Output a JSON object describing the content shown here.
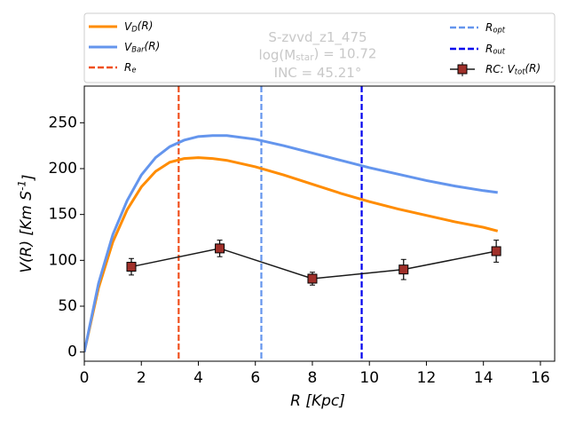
{
  "chart_data": {
    "type": "line",
    "annotations": [
      "S-zvvd_z1_475",
      "log(M_{star}) = 10.72",
      "INC = 45.21°"
    ],
    "xlabel": "R [Kpc]",
    "ylabel": "V(R) [Km S^{-1}]",
    "xlim": [
      0,
      16.5
    ],
    "ylim": [
      -10,
      290
    ],
    "xticks": [
      0,
      2,
      4,
      6,
      8,
      10,
      12,
      14,
      16
    ],
    "yticks": [
      0,
      50,
      100,
      150,
      200,
      250
    ],
    "series": [
      {
        "name": "V_{D}(R)",
        "color": "#ff8c00",
        "x": [
          0,
          0.5,
          1,
          1.5,
          2,
          2.5,
          3,
          3.5,
          4,
          4.5,
          5,
          6,
          7,
          8,
          9,
          10,
          11,
          12,
          13,
          14,
          14.5
        ],
        "values": [
          0,
          70,
          120,
          155,
          180,
          197,
          207,
          211,
          212,
          211,
          209,
          202,
          193,
          183,
          173,
          164,
          156,
          149,
          142,
          136,
          132
        ]
      },
      {
        "name": "V_{Bar}(R)",
        "color": "#6495ed",
        "x": [
          0,
          0.5,
          1,
          1.5,
          2,
          2.5,
          3,
          3.5,
          4,
          4.5,
          5,
          6,
          7,
          8,
          9,
          10,
          11,
          12,
          13,
          14,
          14.5
        ],
        "values": [
          0,
          75,
          128,
          165,
          193,
          212,
          224,
          231,
          235,
          236,
          236,
          232,
          225,
          217,
          209,
          201,
          194,
          187,
          181,
          176,
          174
        ]
      },
      {
        "name": "RC: V_{tot}(R)",
        "color": "#a0302a",
        "x": [
          1.65,
          4.75,
          8.0,
          11.2,
          14.45
        ],
        "values": [
          93,
          113,
          80,
          90,
          110
        ],
        "errors": [
          9,
          9,
          7,
          11,
          12
        ]
      }
    ],
    "vlines": [
      {
        "name": "R_{e}",
        "color": "#f0501e",
        "x": 3.31
      },
      {
        "name": "R_{opt}",
        "color": "#6495ed",
        "x": 6.21
      },
      {
        "name": "R_{out}",
        "color": "#0000ee",
        "x": 9.73
      }
    ]
  }
}
